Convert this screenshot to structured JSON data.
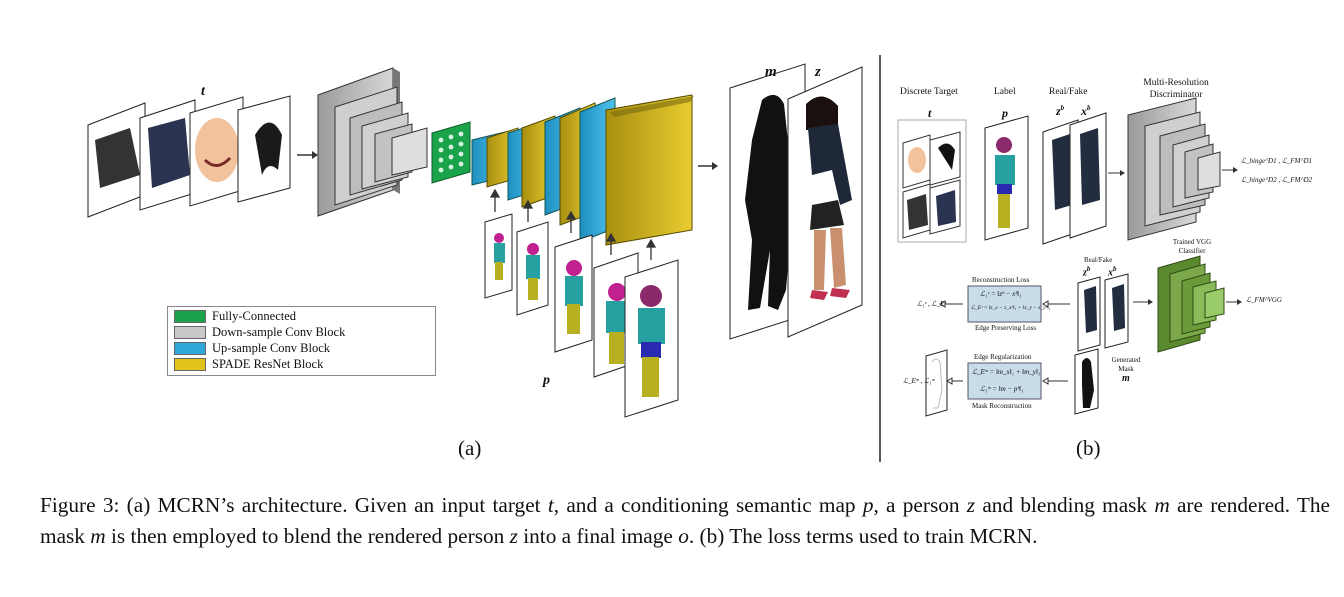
{
  "panel_a": {
    "label": "(a)",
    "t_label": "t",
    "p_label": "p",
    "m_label": "m",
    "z_label": "z",
    "legend": [
      {
        "label": "Fully-Connected",
        "color": "#1aa34a"
      },
      {
        "label": "Down-sample Conv Block",
        "color": "#c8c8c8"
      },
      {
        "label": "Up-sample Conv Block",
        "color": "#2ea7d8"
      },
      {
        "label": "SPADE ResNet Block",
        "color": "#e3c21a"
      }
    ]
  },
  "panel_b": {
    "label": "(b)",
    "discrete_target": "Discrete Target",
    "t": "t",
    "label_header": "Label",
    "p": "p",
    "real_fake": "Real/Fake",
    "zb": "z",
    "zb_sup": "b",
    "xb": "x",
    "xb_sup": "b",
    "discriminator": "Multi-Resolution Discriminator",
    "gan_loss_1": "ℒ_hinge^D1 , ℒ_FM^D1",
    "gan_loss_2": "ℒ_hinge^D2 , ℒ_FM^D2",
    "trained_vgg": "Trained VGG Classifier",
    "vgg_loss": "ℒ_FM^VGG",
    "real_fake_2": "Real/Fake",
    "recon_title": "Reconstruction Loss",
    "recon_eq1": "ℒ₁ᶻ = ‖zᵇ − xᵇ‖₁",
    "recon_eq2": "ℒ_Eᶻ = ‖z_x − z_xᵇ‖₁ + ‖z_y − z_yᵇ‖₁",
    "edge_title": "Edge Preserving Loss",
    "recon_out": "ℒ₁ᶻ , ℒ_Eᶻ",
    "edge_reg_title": "Edge Regularization",
    "mask_eq1": "ℒ_Eᵐ = ‖m_x‖₁ + ‖m_y‖₁",
    "mask_eq2": "ℒ₁ᵐ = ‖m − pᵇ‖₁",
    "mask_recon_title": "Mask Reconstruction",
    "mask_out": "ℒ_Eᵐ , ℒ₁ᵐ",
    "generated_mask": "Generated Mask",
    "m": "m"
  },
  "caption": {
    "prefix": "Figure 3: (a) MCRN’s architecture. Given an input target ",
    "t": "t",
    "mid1": ", and a conditioning semantic map ",
    "p": "p",
    "mid2": ", a person ",
    "z": "z",
    "mid3": " and blending mask ",
    "m": "m",
    "mid4": " are rendered. The mask ",
    "m2": "m",
    "mid5": " is then employed to blend the rendered person ",
    "z2": "z",
    "mid6": " into a final image ",
    "o": "o",
    "suffix": ". (b) The loss terms used to train MCRN."
  }
}
